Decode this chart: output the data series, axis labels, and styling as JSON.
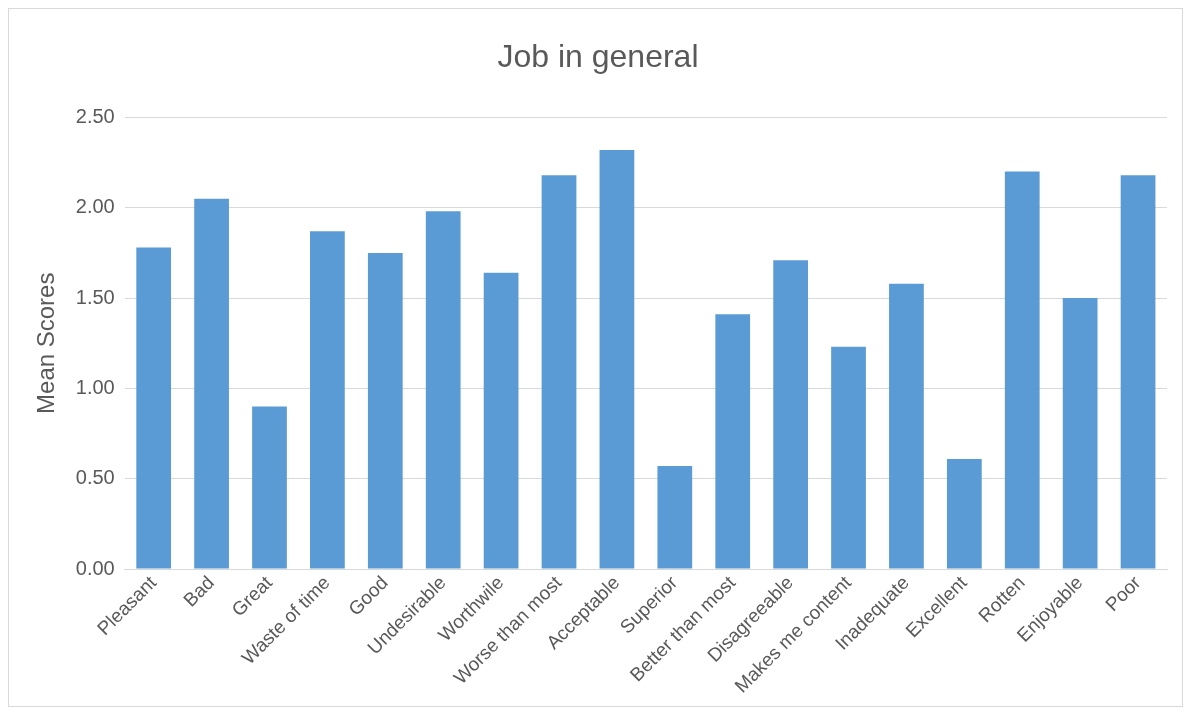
{
  "chart_data": {
    "type": "bar",
    "title": "Job in general",
    "ylabel": "Mean Scores",
    "categories": [
      "Pleasant",
      "Bad",
      "Great",
      "Waste of time",
      "Good",
      "Undesirable",
      "Worthwile",
      "Worse than most",
      "Acceptable",
      "Superior",
      "Better than most",
      "Disagreeable",
      "Makes me content",
      "Inadequate",
      "Excellent",
      "Rotten",
      "Enjoyable",
      "Poor"
    ],
    "values": [
      1.78,
      2.05,
      0.9,
      1.87,
      1.75,
      1.98,
      1.64,
      2.18,
      2.32,
      0.57,
      1.41,
      1.71,
      1.23,
      1.58,
      0.61,
      2.2,
      1.5,
      2.18
    ],
    "color": "#5b9bd5",
    "ylim": [
      0,
      2.5
    ],
    "yticks": [
      {
        "value": 0,
        "label": "0.00"
      },
      {
        "value": 0.5,
        "label": "0.50"
      },
      {
        "value": 1,
        "label": "1.00"
      },
      {
        "value": 1.5,
        "label": "1.50"
      },
      {
        "value": 2,
        "label": "2.00"
      },
      {
        "value": 2.5,
        "label": "2.50"
      }
    ],
    "grid": "y",
    "legend": false
  }
}
